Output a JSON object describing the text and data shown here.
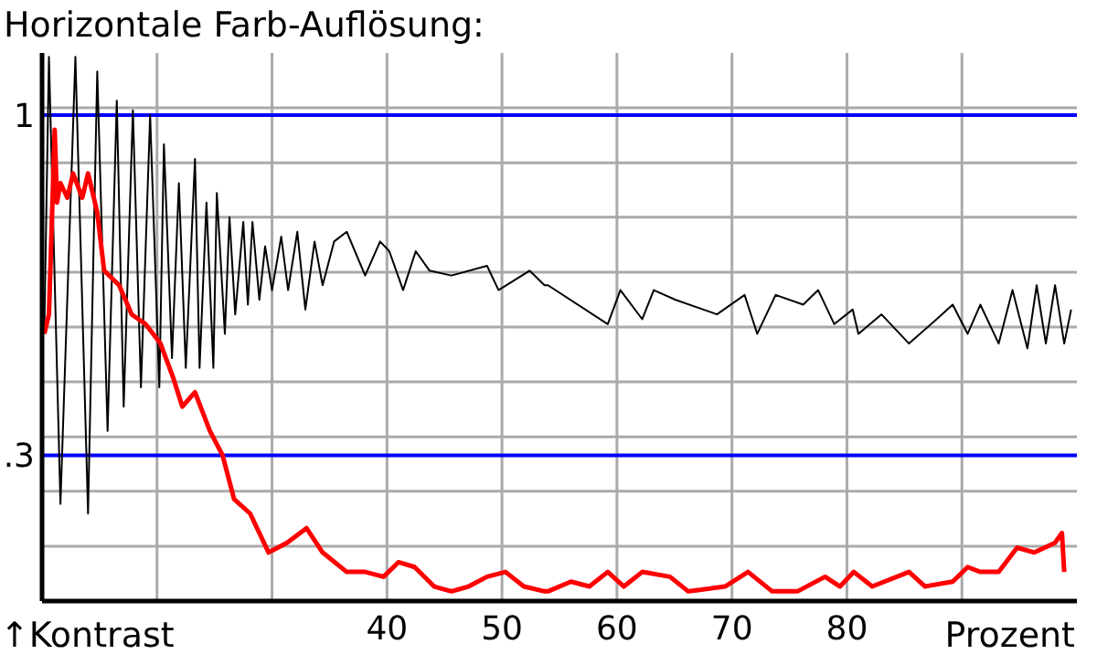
{
  "chart_data": {
    "type": "line",
    "title": "Horizontale Farb-Auflösung:",
    "xlabel": "Prozent",
    "ylabel": "↑Kontrast",
    "xlim": [
      10,
      100
    ],
    "xticks": [
      {
        "value": 20,
        "label": null
      },
      {
        "value": 30,
        "label": null
      },
      40,
      50,
      60,
      70,
      80,
      {
        "value": 90,
        "label": null
      }
    ],
    "ylim": [
      0,
      1.128
    ],
    "yticks": [
      {
        "value": 0.113,
        "label": null
      },
      {
        "value": 0.226,
        "label": null
      },
      {
        "value": 0.338,
        "label": null
      },
      {
        "value": 0.451,
        "label": null
      },
      {
        "value": 0.564,
        "label": null
      },
      {
        "value": 0.677,
        "label": null
      },
      {
        "value": 0.79,
        "label": null
      },
      {
        "value": 0.902,
        "label": null
      },
      {
        "value": 1.015,
        "label": null
      }
    ],
    "grid": true,
    "legend": false,
    "ref_lines": [
      {
        "axis": "y",
        "value": 1,
        "label": "1",
        "color": "#0000ff"
      },
      {
        "axis": "y",
        "value": 0.3,
        "label": ".3",
        "color": "#0000ff"
      }
    ],
    "series": [
      {
        "color": "#000000",
        "x": [
          10.2,
          10.6,
          11.6,
          12.9,
          14.0,
          14.8,
          15.7,
          16.5,
          17.1,
          17.9,
          18.6,
          19.4,
          20.2,
          20.6,
          21.3,
          21.9,
          22.5,
          23.3,
          23.7,
          24.3,
          24.9,
          25.2,
          25.9,
          26.3,
          26.8,
          27.5,
          27.9,
          28.3,
          28.9,
          29.4,
          30.0,
          30.8,
          31.4,
          32.2,
          32.9,
          33.7,
          34.4,
          35.4,
          36.5,
          38.1,
          39.4,
          40.2,
          41.4,
          42.5,
          43.7,
          45.6,
          48.7,
          49.7,
          52.4,
          53.7,
          54.0,
          59.2,
          60.3,
          62.2,
          63.2,
          65.1,
          68.7,
          71.1,
          72.2,
          73.8,
          76.2,
          77.5,
          78.9,
          80.5,
          81.0,
          83.0,
          85.4,
          87.8,
          89.2,
          90.5,
          91.6,
          93.2,
          94.4,
          95.7,
          96.5,
          97.3,
          98.1,
          98.9,
          99.5
        ],
        "values": [
          0.56,
          1.12,
          0.2,
          1.12,
          0.18,
          1.09,
          0.35,
          1.03,
          0.4,
          1.01,
          0.44,
          1.0,
          0.44,
          0.94,
          0.5,
          0.86,
          0.48,
          0.91,
          0.48,
          0.82,
          0.48,
          0.84,
          0.55,
          0.79,
          0.59,
          0.78,
          0.61,
          0.78,
          0.62,
          0.73,
          0.64,
          0.75,
          0.64,
          0.76,
          0.6,
          0.74,
          0.65,
          0.74,
          0.76,
          0.67,
          0.74,
          0.72,
          0.64,
          0.72,
          0.68,
          0.67,
          0.69,
          0.64,
          0.68,
          0.65,
          0.65,
          0.57,
          0.64,
          0.58,
          0.64,
          0.62,
          0.59,
          0.63,
          0.55,
          0.63,
          0.61,
          0.64,
          0.57,
          0.6,
          0.55,
          0.59,
          0.53,
          0.58,
          0.61,
          0.55,
          0.61,
          0.53,
          0.64,
          0.52,
          0.65,
          0.53,
          0.65,
          0.53,
          0.6
        ]
      },
      {
        "color": "#ff0000",
        "x": [
          10.2,
          10.6,
          11.1,
          11.3,
          11.6,
          12.2,
          12.7,
          13.5,
          14.0,
          14.8,
          15.4,
          16.7,
          17.8,
          19.0,
          20.3,
          21.4,
          22.2,
          23.3,
          24.6,
          25.7,
          26.7,
          28.1,
          29.7,
          31.3,
          33.0,
          34.4,
          36.5,
          38.1,
          39.7,
          41.0,
          42.4,
          44.1,
          45.6,
          47.1,
          48.7,
          50.3,
          51.9,
          53.7,
          54.0,
          56.0,
          57.6,
          59.2,
          60.6,
          62.2,
          64.6,
          66.2,
          69.4,
          71.4,
          73.5,
          75.7,
          78.1,
          79.4,
          80.6,
          82.2,
          85.4,
          86.8,
          89.2,
          90.5,
          91.6,
          93.2,
          94.8,
          96.3,
          98.1,
          98.7,
          98.9
        ],
        "values": [
          0.55,
          0.59,
          0.97,
          0.82,
          0.86,
          0.83,
          0.88,
          0.83,
          0.88,
          0.8,
          0.68,
          0.65,
          0.59,
          0.57,
          0.53,
          0.46,
          0.4,
          0.43,
          0.35,
          0.3,
          0.21,
          0.18,
          0.1,
          0.12,
          0.15,
          0.1,
          0.06,
          0.06,
          0.05,
          0.08,
          0.07,
          0.03,
          0.02,
          0.03,
          0.05,
          0.06,
          0.03,
          0.02,
          0.02,
          0.04,
          0.03,
          0.06,
          0.03,
          0.06,
          0.05,
          0.02,
          0.03,
          0.06,
          0.02,
          0.02,
          0.05,
          0.03,
          0.06,
          0.03,
          0.06,
          0.03,
          0.04,
          0.07,
          0.06,
          0.06,
          0.11,
          0.1,
          0.12,
          0.14,
          0.06
        ]
      }
    ]
  }
}
